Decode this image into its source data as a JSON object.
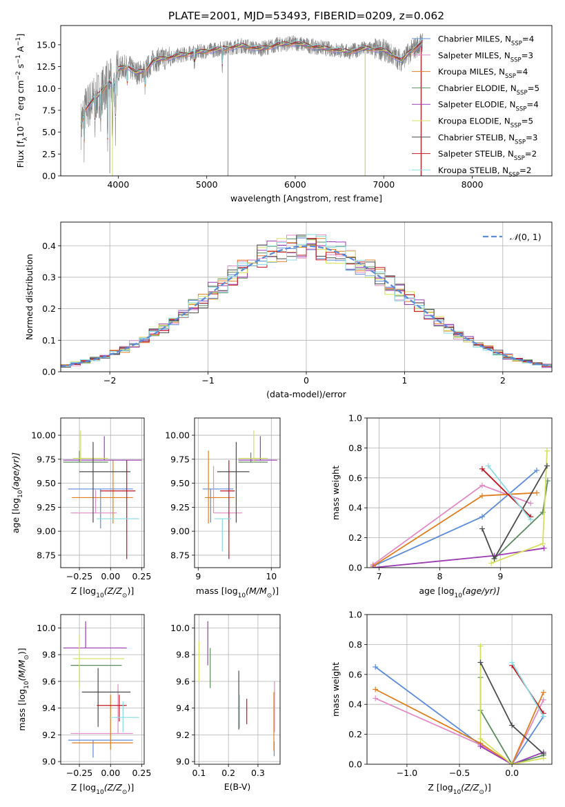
{
  "title": "PLATE=2001, MJD=53493, FIBERID=0209, z=0.062",
  "colors": {
    "series": [
      "#5b8bd9",
      "#e28ac6",
      "#e07d1e",
      "#5a8a5e",
      "#9b3bb4",
      "#d5e05a",
      "#4a4a4a",
      "#c0141e",
      "#86dde3"
    ],
    "data": "#808080"
  },
  "legend": {
    "entries": [
      {
        "prefix": "Chabrier MILES, N",
        "sub": "SSP",
        "suffix": "=4"
      },
      {
        "prefix": "Salpeter MILES, N",
        "sub": "SSP",
        "suffix": "=3"
      },
      {
        "prefix": "Kroupa MILES, N",
        "sub": "SSP",
        "suffix": "=4"
      },
      {
        "prefix": "Chabrier ELODIE, N",
        "sub": "SSP",
        "suffix": "=5"
      },
      {
        "prefix": "Salpeter ELODIE, N",
        "sub": "SSP",
        "suffix": "=4"
      },
      {
        "prefix": "Kroupa ELODIE, N",
        "sub": "SSP",
        "suffix": "=5"
      },
      {
        "prefix": "Chabrier STELIB, N",
        "sub": "SSP",
        "suffix": "=3"
      },
      {
        "prefix": "Salpeter STELIB, N",
        "sub": "SSP",
        "suffix": "=2"
      },
      {
        "prefix": "Kroupa STELIB, N",
        "sub": "SSP",
        "suffix": "=2"
      }
    ]
  },
  "chart_data": [
    {
      "type": "line",
      "id": "spectrum",
      "xlabel": "wavelength [Angstrom, rest frame]",
      "ylabel": {
        "a": "Flux [f",
        "b": "λ",
        "c": "10",
        "d": "−17",
        "e": " erg cm",
        "f": "−2",
        "g": " s",
        "h": "−1",
        "i": " A",
        "j": "−1",
        "k": "]"
      },
      "xlim": [
        3350,
        8900
      ],
      "ylim": [
        0,
        17.2
      ],
      "xticks": [
        4000,
        5000,
        6000,
        7000,
        8000
      ],
      "xtick_labels": [
        "4000",
        "5000",
        "6000",
        "7000",
        "8000"
      ],
      "yticks": [
        0,
        2.5,
        5,
        7.5,
        10,
        12.5,
        15
      ],
      "ytick_labels": [
        "0.0",
        "2.5",
        "5.0",
        "7.5",
        "10.0",
        "12.5",
        "15.0"
      ],
      "grid": false,
      "legend_position": "right",
      "model_anchors": {
        "x": [
          3580,
          3620,
          3700,
          3800,
          3900,
          3950,
          4000,
          4100,
          4200,
          4300,
          4400,
          4500,
          4700,
          4800,
          5000,
          5200,
          5400,
          5600,
          5800,
          6000,
          6200,
          6400,
          6600,
          6800,
          7000,
          7200,
          7300,
          7400,
          7440
        ],
        "y": [
          5.8,
          7.5,
          8.5,
          9.5,
          10.8,
          10.2,
          12.2,
          12.6,
          11.8,
          12.0,
          13.2,
          13.4,
          13.8,
          14.0,
          14.3,
          14.6,
          14.9,
          14.5,
          15.0,
          15.2,
          14.8,
          14.5,
          14.2,
          14.6,
          14.4,
          13.2,
          14.2,
          15.0,
          15.3
        ]
      },
      "dips": [
        {
          "x": 3615,
          "y": 3.4
        },
        {
          "x": 3738,
          "y": 5.0
        },
        {
          "x": 3800,
          "y": 5.0
        },
        {
          "x": 3880,
          "y": 4.2
        },
        {
          "x": 3935,
          "y": 3.4
        },
        {
          "x": 3968,
          "y": 4.6
        },
        {
          "x": 4101,
          "y": 10.3
        },
        {
          "x": 4304,
          "y": 9.6
        },
        {
          "x": 4861,
          "y": 12.0
        },
        {
          "x": 5175,
          "y": 12.3
        }
      ]
    },
    {
      "type": "line",
      "id": "residuals",
      "xlabel": "(data-model)/error",
      "ylabel": "Normed distribution",
      "xlim": [
        -2.5,
        2.5
      ],
      "ylim": [
        0,
        0.475
      ],
      "xticks": [
        -2,
        -1,
        0,
        1,
        2
      ],
      "xtick_labels": [
        "−2",
        "−1",
        "0",
        "1",
        "2"
      ],
      "yticks": [
        0,
        0.1,
        0.2,
        0.3,
        0.4
      ],
      "ytick_labels": [
        "0.0",
        "0.1",
        "0.2",
        "0.3",
        "0.4"
      ],
      "grid": true,
      "legend": {
        "mu": "𝒩",
        "args": "(0, 1)",
        "position": "top-right"
      },
      "bin_width": 0.1,
      "gaussian": {
        "mean": 0,
        "sigma": 1
      }
    },
    {
      "type": "scatter",
      "id": "age-vs-Z",
      "xlabel": {
        "a": "Z [log",
        "b": "10",
        "c": "(Z/Z",
        "d": "⊙",
        "e": ")]"
      },
      "ylabel": {
        "a": "age  [log",
        "b": "10",
        "c": "(age/yr)]"
      },
      "xlim": [
        -0.4,
        0.27
      ],
      "ylim": [
        8.62,
        10.18
      ],
      "xticks": [
        -0.25,
        0,
        0.25
      ],
      "xtick_labels": [
        "−0.25",
        "0.00",
        "0.25"
      ],
      "yticks": [
        8.75,
        9.0,
        9.25,
        9.5,
        9.75,
        10.0
      ],
      "ytick_labels": [
        "8.75",
        "9.00",
        "9.25",
        "9.50",
        "9.75",
        "10.00"
      ],
      "grid": true,
      "points": [
        {
          "s": 0,
          "x": -0.08,
          "y": 9.44,
          "dx": [
            -0.34,
            0.18
          ],
          "dy": [
            9.03,
            9.44
          ]
        },
        {
          "s": 1,
          "x": -0.12,
          "y": 9.19,
          "dx": [
            -0.32,
            0.05
          ],
          "dy": [
            9.19,
            9.43
          ]
        },
        {
          "s": 2,
          "x": 0.02,
          "y": 9.35,
          "dx": [
            -0.31,
            0.18
          ],
          "dy": [
            9.08,
            9.74
          ]
        },
        {
          "s": 3,
          "x": -0.25,
          "y": 9.72,
          "dx": [
            -0.38,
            -0.02
          ],
          "dy": [
            9.72,
            9.84
          ]
        },
        {
          "s": 4,
          "x": -0.05,
          "y": 9.74,
          "dx": [
            -0.38,
            0.25
          ],
          "dy": [
            9.74,
            9.99
          ]
        },
        {
          "s": 5,
          "x": -0.24,
          "y": 9.76,
          "dx": [
            -0.3,
            -0.02
          ],
          "dy": [
            9.73,
            10.05
          ]
        },
        {
          "s": 6,
          "x": -0.14,
          "y": 9.62,
          "dx": [
            -0.25,
            0.16
          ],
          "dy": [
            9.09,
            9.93
          ]
        },
        {
          "s": 7,
          "x": 0.13,
          "y": 9.42,
          "dx": [
            -0.08,
            0.2
          ],
          "dy": [
            8.71,
            9.74
          ]
        },
        {
          "s": 8,
          "x": 0.12,
          "y": 9.13,
          "dx": [
            -0.11,
            0.23
          ],
          "dy": [
            9.13,
            9.13
          ]
        }
      ]
    },
    {
      "type": "scatter",
      "id": "age-vs-mass",
      "xlabel": {
        "a": "mass [log",
        "b": "10",
        "c": "(M/M",
        "d": "⊙",
        "e": ")]"
      },
      "ylabel": "",
      "xlim": [
        8.95,
        10.12
      ],
      "ylim": [
        8.62,
        10.18
      ],
      "xticks": [
        9,
        10
      ],
      "xtick_labels": [
        "9",
        "10"
      ],
      "yticks": [
        8.75,
        9.0,
        9.25,
        9.5,
        9.75,
        10.0
      ],
      "ytick_labels": [
        "8.75",
        "9.00",
        "9.25",
        "9.50",
        "9.75",
        "10.00"
      ],
      "grid": true,
      "points": [
        {
          "s": 0,
          "x": 9.17,
          "y": 9.44,
          "dx": [
            9.06,
            9.48
          ],
          "dy": [
            9.09,
            9.44
          ]
        },
        {
          "s": 1,
          "x": 9.21,
          "y": 9.19,
          "dx": [
            9.21,
            9.6
          ],
          "dy": [
            9.19,
            9.68
          ]
        },
        {
          "s": 2,
          "x": 9.14,
          "y": 9.35,
          "dx": [
            9.09,
            9.5
          ],
          "dy": [
            9.08,
            9.84
          ]
        },
        {
          "s": 3,
          "x": 9.72,
          "y": 9.72,
          "dx": [
            9.55,
            9.95
          ],
          "dy": [
            9.72,
            9.82
          ]
        },
        {
          "s": 4,
          "x": 9.85,
          "y": 9.74,
          "dx": [
            9.55,
            10.08
          ],
          "dy": [
            9.74,
            9.99
          ]
        },
        {
          "s": 5,
          "x": 9.76,
          "y": 9.76,
          "dx": [
            9.55,
            9.95
          ],
          "dy": [
            9.72,
            10.05
          ]
        },
        {
          "s": 6,
          "x": 9.52,
          "y": 9.62,
          "dx": [
            9.26,
            9.7
          ],
          "dy": [
            9.09,
            9.93
          ]
        },
        {
          "s": 7,
          "x": 9.42,
          "y": 9.42,
          "dx": [
            9.3,
            9.5
          ],
          "dy": [
            8.71,
            9.74
          ]
        },
        {
          "s": 8,
          "x": 9.33,
          "y": 9.13,
          "dx": [
            9.22,
            9.45
          ],
          "dy": [
            8.79,
            9.13
          ]
        }
      ]
    },
    {
      "type": "line",
      "id": "weight-vs-age",
      "xlabel": {
        "a": "age  [log",
        "b": "10",
        "c": "(age/yr)]"
      },
      "ylabel": "mass weight",
      "xlim": [
        6.8,
        9.85
      ],
      "ylim": [
        0,
        1
      ],
      "xticks": [
        7,
        8,
        9
      ],
      "xtick_labels": [
        "7",
        "8",
        "9"
      ],
      "yticks": [
        0,
        0.2,
        0.4,
        0.6,
        0.8,
        1.0
      ],
      "ytick_labels": [
        "0.0",
        "0.2",
        "0.4",
        "0.6",
        "0.8",
        "1.0"
      ],
      "grid": true,
      "series": [
        {
          "s": 0,
          "x": [
            6.9,
            8.7,
            9.6
          ],
          "y": [
            0.01,
            0.34,
            0.65
          ]
        },
        {
          "s": 1,
          "x": [
            6.9,
            8.7,
            9.5
          ],
          "y": [
            0.02,
            0.55,
            0.43
          ]
        },
        {
          "s": 2,
          "x": [
            6.9,
            8.7,
            9.6
          ],
          "y": [
            0.01,
            0.48,
            0.5
          ]
        },
        {
          "s": 3,
          "x": [
            8.9,
            9.7,
            9.78
          ],
          "y": [
            0.06,
            0.37,
            0.58
          ]
        },
        {
          "s": 4,
          "x": [
            6.9,
            8.9,
            9.72
          ],
          "y": [
            0.0,
            0.08,
            0.13
          ]
        },
        {
          "s": 5,
          "x": [
            8.85,
            9.7,
            9.77
          ],
          "y": [
            0.03,
            0.16,
            0.78
          ]
        },
        {
          "s": 6,
          "x": [
            8.7,
            8.9,
            9.77
          ],
          "y": [
            0.26,
            0.06,
            0.68
          ]
        },
        {
          "s": 7,
          "x": [
            8.7,
            9.5
          ],
          "y": [
            0.66,
            0.34
          ]
        },
        {
          "s": 8,
          "x": [
            8.8,
            9.5
          ],
          "y": [
            0.68,
            0.32
          ]
        }
      ]
    },
    {
      "type": "scatter",
      "id": "mass-vs-Z",
      "xlabel": {
        "a": "Z [log",
        "b": "10",
        "c": "(Z/Z",
        "d": "⊙",
        "e": ")]"
      },
      "ylabel": {
        "a": "mass [log",
        "b": "10",
        "c": "(M/M",
        "d": "⊙",
        "e": ")]"
      },
      "xlim": [
        -0.4,
        0.27
      ],
      "ylim": [
        8.98,
        10.1
      ],
      "xticks": [
        -0.25,
        0,
        0.25
      ],
      "xtick_labels": [
        "−0.25",
        "0.00",
        "0.25"
      ],
      "yticks": [
        9.0,
        9.2,
        9.4,
        9.6,
        9.8,
        10.0
      ],
      "ytick_labels": [
        "9.0",
        "9.2",
        "9.4",
        "9.6",
        "9.8",
        "10.0"
      ],
      "grid": true,
      "points": [
        {
          "s": 0,
          "x": -0.14,
          "y": 9.16,
          "dx": [
            -0.34,
            0.18
          ],
          "dy": [
            9.03,
            9.16
          ]
        },
        {
          "s": 1,
          "x": 0.06,
          "y": 9.21,
          "dx": [
            -0.32,
            0.18
          ],
          "dy": [
            9.21,
            9.58
          ]
        },
        {
          "s": 2,
          "x": 0.0,
          "y": 9.14,
          "dx": [
            -0.31,
            0.18
          ],
          "dy": [
            9.09,
            9.5
          ]
        },
        {
          "s": 3,
          "x": -0.25,
          "y": 9.72,
          "dx": [
            -0.32,
            0.09
          ],
          "dy": [
            9.55,
            9.72
          ]
        },
        {
          "s": 4,
          "x": -0.2,
          "y": 9.85,
          "dx": [
            -0.38,
            0.13
          ],
          "dy": [
            9.85,
            10.05
          ]
        },
        {
          "s": 5,
          "x": -0.25,
          "y": 9.77,
          "dx": [
            -0.3,
            0.11
          ],
          "dy": [
            9.55,
            9.95
          ]
        },
        {
          "s": 6,
          "x": -0.1,
          "y": 9.52,
          "dx": [
            -0.23,
            0.16
          ],
          "dy": [
            9.26,
            9.7
          ]
        },
        {
          "s": 7,
          "x": 0.07,
          "y": 9.42,
          "dx": [
            -0.11,
            0.13
          ],
          "dy": [
            9.3,
            9.5
          ]
        },
        {
          "s": 8,
          "x": 0.1,
          "y": 9.33,
          "dx": [
            -0.01,
            0.23
          ],
          "dy": [
            9.22,
            9.45
          ]
        }
      ]
    },
    {
      "type": "scatter",
      "id": "mass-vs-EBV",
      "xlabel": "E(B-V)",
      "ylabel": "",
      "xlim": [
        0.085,
        0.375
      ],
      "ylim": [
        8.98,
        10.1
      ],
      "xticks": [
        0.1,
        0.2,
        0.3
      ],
      "xtick_labels": [
        "0.1",
        "0.2",
        "0.3"
      ],
      "yticks": [
        9.0,
        9.2,
        9.4,
        9.6,
        9.8,
        10.0
      ],
      "ytick_labels": [
        "9.0",
        "9.2",
        "9.4",
        "9.6",
        "9.8",
        "10.0"
      ],
      "grid": true,
      "points": [
        {
          "s": 0,
          "x": 0.355,
          "y": 9.04,
          "dy": [
            9.04,
            9.15
          ]
        },
        {
          "s": 1,
          "x": 0.356,
          "y": 9.3,
          "dy": [
            9.22,
            9.6
          ]
        },
        {
          "s": 2,
          "x": 0.354,
          "y": 9.3,
          "dy": [
            9.08,
            9.52
          ]
        },
        {
          "s": 3,
          "x": 0.138,
          "y": 9.7,
          "dy": [
            9.55,
            9.85
          ]
        },
        {
          "s": 4,
          "x": 0.13,
          "y": 9.88,
          "dy": [
            9.72,
            10.05
          ]
        },
        {
          "s": 5,
          "x": 0.1,
          "y": 9.78,
          "dy": [
            9.6,
            9.9
          ]
        },
        {
          "s": 6,
          "x": 0.235,
          "y": 9.45,
          "dy": [
            9.24,
            9.68
          ]
        },
        {
          "s": 7,
          "x": 0.262,
          "y": 9.38,
          "dy": [
            9.28,
            9.47
          ]
        },
        {
          "s": 8,
          "x": 0.238,
          "y": 9.38,
          "dy": [
            9.25,
            9.5
          ]
        }
      ]
    },
    {
      "type": "line",
      "id": "weight-vs-Z",
      "xlabel": {
        "a": "Z [log",
        "b": "10",
        "c": "(Z/Z",
        "d": "⊙",
        "e": ")]"
      },
      "ylabel": "mass weight",
      "xlim": [
        -1.38,
        0.38
      ],
      "ylim": [
        0,
        1
      ],
      "xticks": [
        -1.0,
        -0.5,
        0.0
      ],
      "xtick_labels": [
        "−1.0",
        "−0.5",
        "0.0"
      ],
      "yticks": [
        0,
        0.2,
        0.4,
        0.6,
        0.8,
        1.0
      ],
      "ytick_labels": [
        "0.0",
        "0.2",
        "0.4",
        "0.6",
        "0.8",
        "1.0"
      ],
      "grid": true,
      "series": [
        {
          "s": 0,
          "x": [
            -1.3,
            -0.3,
            0.0,
            0.3
          ],
          "y": [
            0.65,
            0.13,
            0.0,
            0.32
          ]
        },
        {
          "s": 1,
          "x": [
            -1.3,
            -0.3,
            0.0,
            0.3
          ],
          "y": [
            0.44,
            0.13,
            0.0,
            0.43
          ]
        },
        {
          "s": 2,
          "x": [
            -1.3,
            -0.3,
            0.0,
            0.3
          ],
          "y": [
            0.5,
            0.14,
            0.0,
            0.48
          ]
        },
        {
          "s": 3,
          "x": [
            -0.3,
            -0.3,
            0.0,
            0.3
          ],
          "y": [
            0.58,
            0.36,
            0.0,
            0.06
          ]
        },
        {
          "s": 4,
          "x": [
            -0.3,
            0.0,
            0.3
          ],
          "y": [
            0.12,
            0.0,
            0.08
          ]
        },
        {
          "s": 5,
          "x": [
            -0.3,
            -0.3,
            0.0,
            0.3
          ],
          "y": [
            0.79,
            0.17,
            0.0,
            0.04
          ]
        },
        {
          "s": 6,
          "x": [
            -0.3,
            0.0,
            0.3
          ],
          "y": [
            0.68,
            0.26,
            0.07
          ]
        },
        {
          "s": 7,
          "x": [
            0.0,
            0.3
          ],
          "y": [
            0.66,
            0.34
          ]
        },
        {
          "s": 8,
          "x": [
            0.0,
            0.3
          ],
          "y": [
            0.68,
            0.32
          ]
        }
      ]
    }
  ]
}
